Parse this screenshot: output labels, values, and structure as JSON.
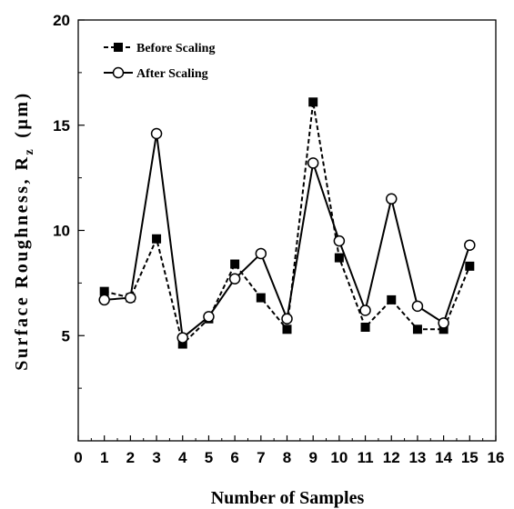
{
  "chart_data": {
    "type": "line",
    "title": "",
    "xlabel": "Number of Samples",
    "ylabel": "Surface Roughness, R",
    "ylabel_subscript": "z",
    "ylabel_unit": "(µm)",
    "xlim": [
      0,
      16
    ],
    "ylim": [
      0,
      20
    ],
    "x_ticks": [
      "0",
      "1",
      "2",
      "3",
      "4",
      "5",
      "6",
      "7",
      "8",
      "9",
      "10",
      "11",
      "12",
      "13",
      "14",
      "15",
      "16"
    ],
    "y_ticks": [
      "5",
      "10",
      "15",
      "20"
    ],
    "grid": false,
    "legend_position": "top-left",
    "x": [
      1,
      2,
      3,
      4,
      5,
      6,
      7,
      8,
      9,
      10,
      11,
      12,
      13,
      14,
      15
    ],
    "series": [
      {
        "name": "Before Scaling",
        "marker": "filled-square",
        "line_style": "dashed",
        "color": "#000000",
        "values": [
          7.1,
          6.8,
          9.6,
          4.6,
          5.8,
          8.4,
          6.8,
          5.3,
          16.1,
          8.7,
          5.4,
          6.7,
          5.3,
          5.3,
          8.3
        ]
      },
      {
        "name": "After Scaling",
        "marker": "open-circle",
        "line_style": "solid",
        "color": "#000000",
        "values": [
          6.7,
          6.8,
          14.6,
          4.9,
          5.9,
          7.7,
          8.9,
          5.8,
          13.2,
          9.5,
          6.2,
          11.5,
          6.4,
          5.6,
          9.3
        ]
      }
    ]
  }
}
